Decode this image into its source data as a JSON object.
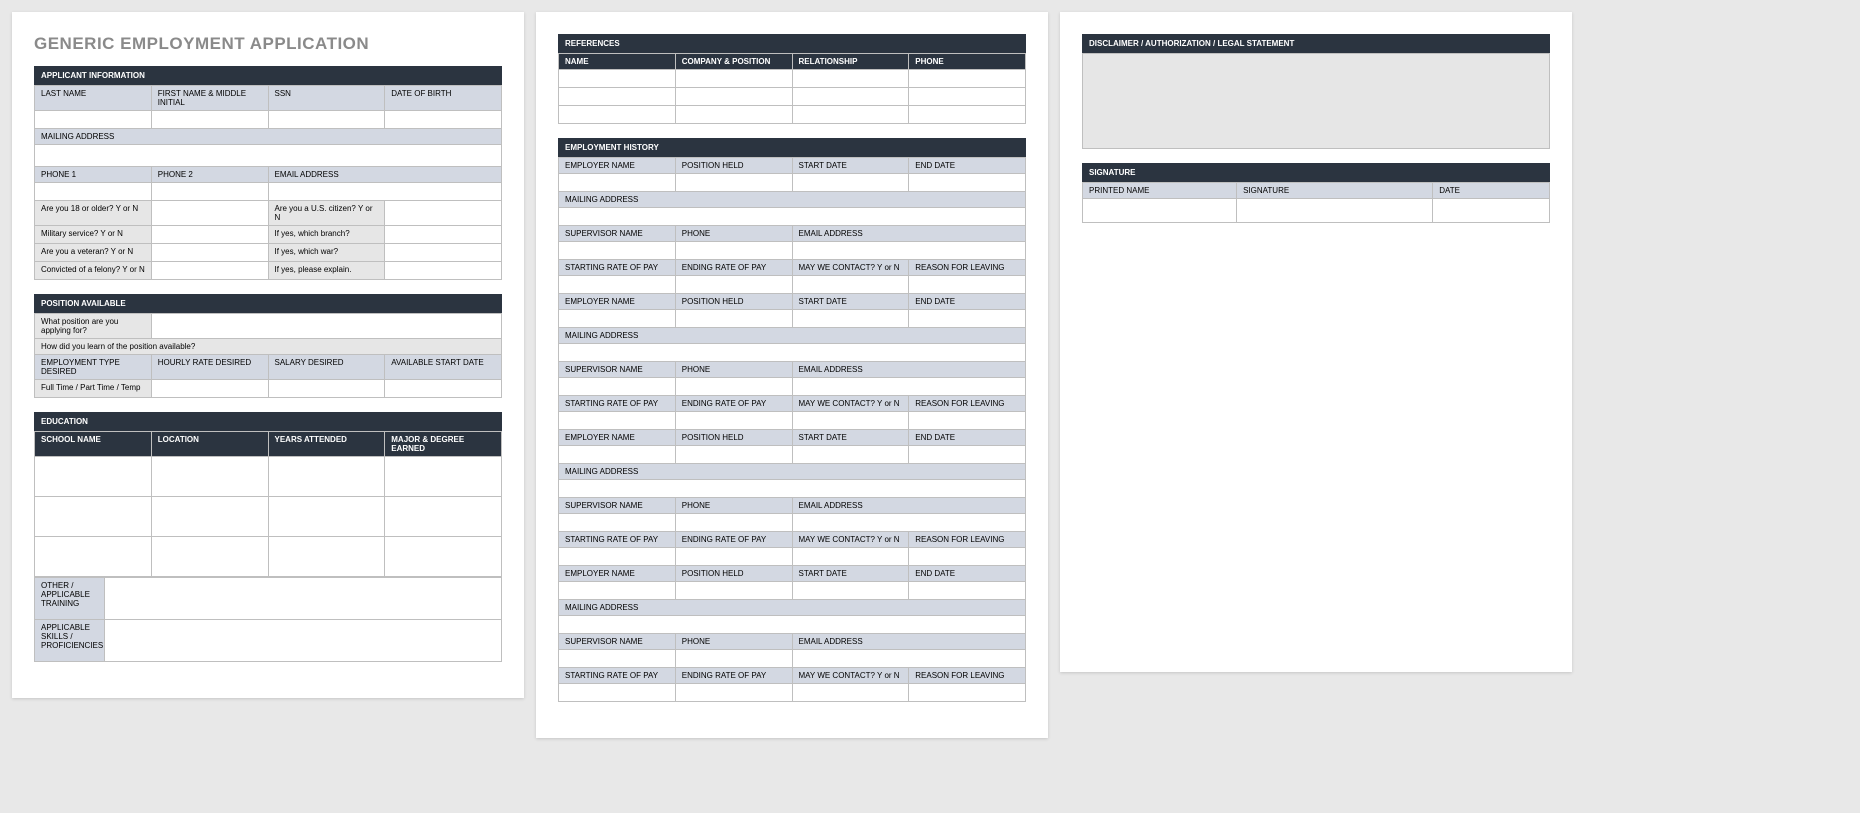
{
  "colors": {
    "page_bg": "#e8e8e8",
    "paper_bg": "#ffffff",
    "section_header_bg": "#2b3440",
    "section_header_fg": "#ffffff",
    "label_bg": "#d3d8e2",
    "label_grey_bg": "#e6e6e6",
    "border": "#bfbfbf",
    "title_color": "#8a8a8a"
  },
  "title": "GENERIC EMPLOYMENT APPLICATION",
  "applicant": {
    "section": "APPLICANT INFORMATION",
    "last_name": "LAST NAME",
    "first_mi": "FIRST NAME & MIDDLE INITIAL",
    "ssn": "SSN",
    "dob": "DATE OF BIRTH",
    "mailing": "MAILING ADDRESS",
    "phone1": "PHONE 1",
    "phone2": "PHONE 2",
    "email": "EMAIL ADDRESS",
    "q18": "Are you 18 or older?  Y or N",
    "qcitizen": "Are you a U.S. citizen?  Y or N",
    "qmil": "Military service?  Y or N",
    "qbranch": "If yes, which branch?",
    "qvet": "Are you a veteran?  Y or N",
    "qwar": "If yes, which war?",
    "qfelony": "Convicted of a felony?  Y or N",
    "qexplain": "If yes, please explain."
  },
  "position": {
    "section": "POSITION AVAILABLE",
    "q_apply": "What position are you applying for?",
    "q_learn": "How did you learn of the position available?",
    "emp_type": "EMPLOYMENT TYPE DESIRED",
    "hourly": "HOURLY RATE DESIRED",
    "salary": "SALARY DESIRED",
    "start": "AVAILABLE START DATE",
    "ft": "Full Time / Part Time / Temp"
  },
  "education": {
    "section": "EDUCATION",
    "school": "SCHOOL NAME",
    "location": "LOCATION",
    "years": "YEARS ATTENDED",
    "major": "MAJOR & DEGREE EARNED",
    "other": "OTHER / APPLICABLE TRAINING",
    "skills": "APPLICABLE SKILLS / PROFICIENCIES"
  },
  "references": {
    "section": "REFERENCES",
    "name": "NAME",
    "company": "COMPANY & POSITION",
    "rel": "RELATIONSHIP",
    "phone": "PHONE"
  },
  "employment": {
    "section": "EMPLOYMENT HISTORY",
    "employer": "EMPLOYER NAME",
    "position": "POSITION HELD",
    "start": "START DATE",
    "end": "END DATE",
    "mailing": "MAILING ADDRESS",
    "supervisor": "SUPERVISOR NAME",
    "phone": "PHONE",
    "email": "EMAIL ADDRESS",
    "spay": "STARTING RATE OF PAY",
    "epay": "ENDING RATE OF PAY",
    "contact": "MAY WE CONTACT? Y or N",
    "reason": "REASON FOR LEAVING"
  },
  "disclaimer": {
    "section": "DISCLAIMER / AUTHORIZATION / LEGAL STATEMENT"
  },
  "signature": {
    "section": "SIGNATURE",
    "printed": "PRINTED NAME",
    "sig": "SIGNATURE",
    "date": "DATE"
  }
}
